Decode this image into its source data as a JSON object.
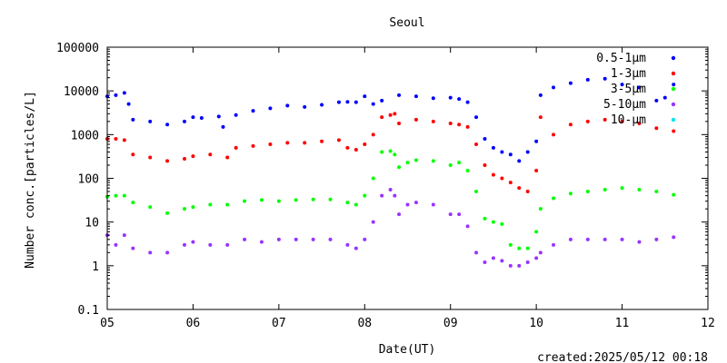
{
  "chart_data": {
    "type": "scatter",
    "title": "Seoul",
    "xlabel": "Date(UT)",
    "ylabel": "Number conc.[particles/L]",
    "x_ticks": [
      "05",
      "06",
      "07",
      "08",
      "09",
      "10",
      "11",
      "12"
    ],
    "x_range": [
      5,
      12
    ],
    "y_ticks": [
      "0.1",
      "1",
      "10",
      "100",
      "1000",
      "10000",
      "100000"
    ],
    "y_range": [
      0.1,
      100000
    ],
    "y_scale": "log",
    "grid": false,
    "legend_position": "top-right",
    "footer": "created:2025/05/12 00:18",
    "series": [
      {
        "name": "0.5-1μm",
        "color": "#0000ff",
        "points": [
          [
            5.0,
            7500
          ],
          [
            5.1,
            8000
          ],
          [
            5.2,
            9000
          ],
          [
            5.25,
            5000
          ],
          [
            5.3,
            2200
          ],
          [
            5.5,
            2000
          ],
          [
            5.7,
            1700
          ],
          [
            5.9,
            2000
          ],
          [
            6.0,
            2500
          ],
          [
            6.1,
            2400
          ],
          [
            6.3,
            2600
          ],
          [
            6.35,
            1500
          ],
          [
            6.5,
            2800
          ],
          [
            6.7,
            3500
          ],
          [
            6.9,
            4000
          ],
          [
            7.1,
            4600
          ],
          [
            7.3,
            4300
          ],
          [
            7.5,
            4800
          ],
          [
            7.7,
            5500
          ],
          [
            7.8,
            5600
          ],
          [
            7.9,
            5500
          ],
          [
            8.0,
            7500
          ],
          [
            8.1,
            5000
          ],
          [
            8.2,
            6000
          ],
          [
            8.4,
            8000
          ],
          [
            8.6,
            7500
          ],
          [
            8.8,
            6800
          ],
          [
            9.0,
            7000
          ],
          [
            9.1,
            6500
          ],
          [
            9.2,
            5500
          ],
          [
            9.3,
            2500
          ],
          [
            9.4,
            800
          ],
          [
            9.5,
            500
          ],
          [
            9.6,
            400
          ],
          [
            9.7,
            350
          ],
          [
            9.8,
            250
          ],
          [
            9.9,
            400
          ],
          [
            10.0,
            700
          ],
          [
            10.05,
            8000
          ],
          [
            10.2,
            12000
          ],
          [
            10.4,
            15000
          ],
          [
            10.6,
            18000
          ],
          [
            10.8,
            19000
          ],
          [
            11.0,
            14000
          ],
          [
            11.2,
            12000
          ],
          [
            11.4,
            6000
          ],
          [
            11.5,
            7000
          ],
          [
            11.6,
            14000
          ]
        ]
      },
      {
        "name": "1-3μm",
        "color": "#ff0000",
        "points": [
          [
            5.0,
            800
          ],
          [
            5.1,
            800
          ],
          [
            5.2,
            750
          ],
          [
            5.3,
            350
          ],
          [
            5.5,
            300
          ],
          [
            5.7,
            250
          ],
          [
            5.9,
            280
          ],
          [
            6.0,
            320
          ],
          [
            6.2,
            350
          ],
          [
            6.4,
            300
          ],
          [
            6.5,
            500
          ],
          [
            6.7,
            550
          ],
          [
            6.9,
            600
          ],
          [
            7.1,
            650
          ],
          [
            7.3,
            650
          ],
          [
            7.5,
            700
          ],
          [
            7.7,
            750
          ],
          [
            7.8,
            500
          ],
          [
            7.9,
            450
          ],
          [
            8.0,
            600
          ],
          [
            8.1,
            1000
          ],
          [
            8.2,
            2500
          ],
          [
            8.3,
            2800
          ],
          [
            8.35,
            3000
          ],
          [
            8.4,
            1800
          ],
          [
            8.6,
            2200
          ],
          [
            8.8,
            2000
          ],
          [
            9.0,
            1800
          ],
          [
            9.1,
            1700
          ],
          [
            9.2,
            1500
          ],
          [
            9.3,
            600
          ],
          [
            9.4,
            200
          ],
          [
            9.5,
            120
          ],
          [
            9.6,
            100
          ],
          [
            9.7,
            80
          ],
          [
            9.8,
            60
          ],
          [
            9.9,
            50
          ],
          [
            10.0,
            150
          ],
          [
            10.05,
            2500
          ],
          [
            10.2,
            1000
          ],
          [
            10.4,
            1700
          ],
          [
            10.6,
            2000
          ],
          [
            10.8,
            2200
          ],
          [
            11.0,
            2000
          ],
          [
            11.2,
            1800
          ],
          [
            11.4,
            1400
          ],
          [
            11.6,
            1200
          ]
        ]
      },
      {
        "name": "3-5μm",
        "color": "#00ff00",
        "points": [
          [
            5.0,
            38
          ],
          [
            5.1,
            40
          ],
          [
            5.2,
            40
          ],
          [
            5.3,
            28
          ],
          [
            5.5,
            22
          ],
          [
            5.7,
            16
          ],
          [
            5.9,
            20
          ],
          [
            6.0,
            22
          ],
          [
            6.2,
            25
          ],
          [
            6.4,
            25
          ],
          [
            6.6,
            30
          ],
          [
            6.8,
            32
          ],
          [
            7.0,
            30
          ],
          [
            7.2,
            32
          ],
          [
            7.4,
            33
          ],
          [
            7.6,
            33
          ],
          [
            7.8,
            28
          ],
          [
            7.9,
            25
          ],
          [
            8.0,
            40
          ],
          [
            8.1,
            100
          ],
          [
            8.2,
            400
          ],
          [
            8.3,
            420
          ],
          [
            8.35,
            350
          ],
          [
            8.4,
            180
          ],
          [
            8.5,
            230
          ],
          [
            8.6,
            260
          ],
          [
            8.8,
            250
          ],
          [
            9.0,
            200
          ],
          [
            9.1,
            230
          ],
          [
            9.2,
            150
          ],
          [
            9.3,
            50
          ],
          [
            9.4,
            12
          ],
          [
            9.5,
            10
          ],
          [
            9.6,
            9
          ],
          [
            9.7,
            3
          ],
          [
            9.8,
            2.5
          ],
          [
            9.9,
            2.5
          ],
          [
            10.0,
            6
          ],
          [
            10.05,
            20
          ],
          [
            10.2,
            35
          ],
          [
            10.4,
            45
          ],
          [
            10.6,
            50
          ],
          [
            10.8,
            55
          ],
          [
            11.0,
            60
          ],
          [
            11.2,
            55
          ],
          [
            11.4,
            50
          ],
          [
            11.6,
            42
          ]
        ]
      },
      {
        "name": "5-10μm",
        "color": "#9933ff",
        "points": [
          [
            5.0,
            5
          ],
          [
            5.1,
            3
          ],
          [
            5.2,
            5
          ],
          [
            5.3,
            2.5
          ],
          [
            5.5,
            2
          ],
          [
            5.7,
            2
          ],
          [
            5.9,
            3
          ],
          [
            6.0,
            3.5
          ],
          [
            6.2,
            3
          ],
          [
            6.4,
            3
          ],
          [
            6.6,
            4
          ],
          [
            6.8,
            3.5
          ],
          [
            7.0,
            4
          ],
          [
            7.2,
            4
          ],
          [
            7.4,
            4
          ],
          [
            7.6,
            4
          ],
          [
            7.8,
            3
          ],
          [
            7.9,
            2.5
          ],
          [
            8.0,
            4
          ],
          [
            8.1,
            10
          ],
          [
            8.2,
            40
          ],
          [
            8.3,
            55
          ],
          [
            8.35,
            40
          ],
          [
            8.4,
            15
          ],
          [
            8.5,
            25
          ],
          [
            8.6,
            28
          ],
          [
            8.8,
            25
          ],
          [
            9.0,
            15
          ],
          [
            9.1,
            15
          ],
          [
            9.2,
            8
          ],
          [
            9.3,
            2
          ],
          [
            9.4,
            1.2
          ],
          [
            9.5,
            1.5
          ],
          [
            9.6,
            1.3
          ],
          [
            9.7,
            1
          ],
          [
            9.8,
            1
          ],
          [
            9.9,
            1.2
          ],
          [
            10.0,
            1.5
          ],
          [
            10.05,
            2
          ],
          [
            10.2,
            3
          ],
          [
            10.4,
            4
          ],
          [
            10.6,
            4
          ],
          [
            10.8,
            4
          ],
          [
            11.0,
            4
          ],
          [
            11.2,
            3.5
          ],
          [
            11.4,
            4
          ],
          [
            11.6,
            4.5
          ]
        ]
      },
      {
        "name": "10-μm",
        "color": "#00e5ee",
        "points": []
      }
    ]
  }
}
